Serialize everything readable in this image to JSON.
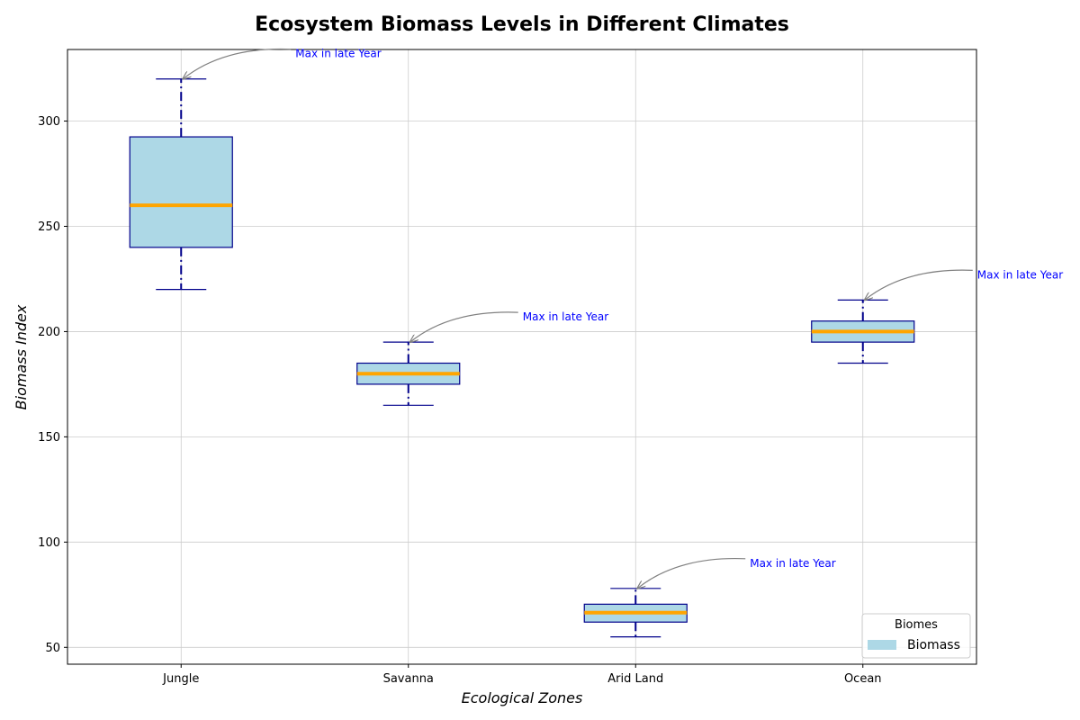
{
  "chart_data": {
    "type": "box",
    "title": "Ecosystem Biomass Levels in Different Climates",
    "xlabel": "Ecological Zones",
    "ylabel": "Biomass Index",
    "ylim": [
      42,
      334
    ],
    "yticks": [
      50,
      100,
      150,
      200,
      250,
      300
    ],
    "grid": true,
    "categories": [
      "Jungle",
      "Savanna",
      "Arid Land",
      "Ocean"
    ],
    "boxes": [
      {
        "category": "Jungle",
        "whisker_low": 220,
        "q1": 240,
        "median": 260,
        "q3": 292.5,
        "whisker_high": 320
      },
      {
        "category": "Savanna",
        "whisker_low": 165,
        "q1": 175,
        "median": 180,
        "q3": 185,
        "whisker_high": 195
      },
      {
        "category": "Arid Land",
        "whisker_low": 55,
        "q1": 62,
        "median": 66.5,
        "q3": 70.5,
        "whisker_high": 78
      },
      {
        "category": "Ocean",
        "whisker_low": 185,
        "q1": 195,
        "median": 200,
        "q3": 205,
        "whisker_high": 215
      }
    ],
    "annotations": [
      {
        "category": "Jungle",
        "y": 320,
        "text": "Max in late Year"
      },
      {
        "category": "Savanna",
        "y": 195,
        "text": "Max in late Year"
      },
      {
        "category": "Arid Land",
        "y": 78,
        "text": "Max in late Year"
      },
      {
        "category": "Ocean",
        "y": 215,
        "text": "Max in late Year"
      }
    ],
    "legend": {
      "title": "Biomes",
      "entries": [
        {
          "label": "Biomass"
        }
      ],
      "placement": "lower-right"
    },
    "colors": {
      "box_fill": "#add8e6",
      "box_edge": "#00008b",
      "median": "#ffa500",
      "whisker": "#00008b",
      "annotation_text": "#0000ff",
      "annotation_arrow": "#808080",
      "grid": "#cccccc"
    }
  }
}
